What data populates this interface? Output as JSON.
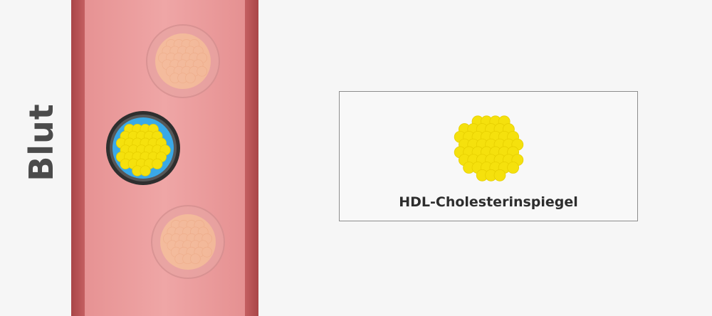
{
  "side_label": "Blut",
  "legend": {
    "caption": "HDL-Cholesterinspiegel"
  },
  "colors": {
    "background": "#f6f6f6",
    "vessel_wall": "#b85254",
    "vessel_lumen": "#ec9f9f",
    "cholesterol_yellow": "#f5e10d",
    "hdl_shell_blue": "#3ca8e6",
    "hdl_rim_dark": "#333333",
    "faded_particle": "#f4c9a0"
  },
  "icons": {
    "cholesterol_cluster": "cholesterol-cluster-icon"
  }
}
